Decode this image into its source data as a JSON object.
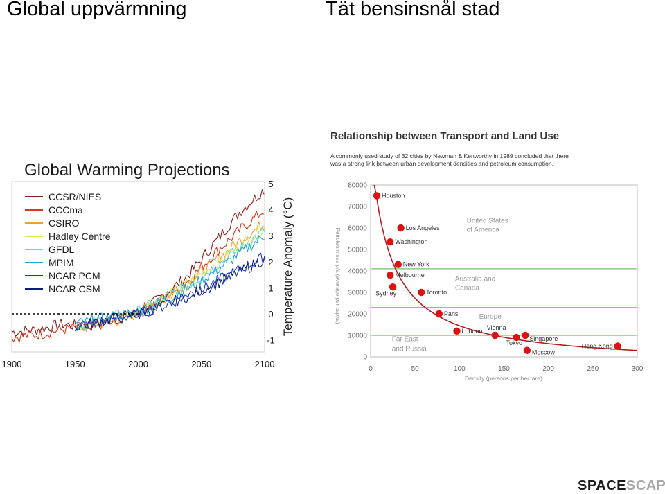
{
  "slide": {
    "title_left": "Global uppvärmning",
    "title_right": "Tät bensinsnål stad"
  },
  "brand": {
    "part1": "SPACE",
    "part2": "SCAPE"
  },
  "chart_data": [
    {
      "type": "line",
      "title": "Global Warming Projections",
      "ylabel": "Temperature Anomaly (°C)",
      "x_ticks": [
        1900,
        1950,
        2000,
        2050,
        2100
      ],
      "y_ticks": [
        5,
        4,
        3,
        2,
        1,
        0,
        -1
      ],
      "xlim": [
        1900,
        2100
      ],
      "ylim": [
        -1.5,
        5.3
      ],
      "baseline": 0,
      "series": [
        {
          "name": "CCSR/NIES",
          "color": "#8b1a1a",
          "x": [
            1900,
            1920,
            1940,
            1960,
            1980,
            2000,
            2020,
            2040,
            2060,
            2080,
            2100
          ],
          "y": [
            -0.7,
            -0.6,
            -0.4,
            -0.5,
            -0.2,
            0.0,
            0.7,
            1.5,
            2.7,
            3.9,
            4.8
          ]
        },
        {
          "name": "CCCma",
          "color": "#d33a1f",
          "x": [
            1900,
            1920,
            1940,
            1960,
            1980,
            2000,
            2020,
            2040,
            2060,
            2080,
            2100
          ],
          "y": [
            -0.9,
            -0.8,
            -0.6,
            -0.5,
            -0.3,
            0.1,
            0.6,
            1.3,
            2.3,
            3.2,
            4.0
          ]
        },
        {
          "name": "CSIRO",
          "color": "#f0a02a",
          "x": [
            1950,
            1960,
            1980,
            2000,
            2020,
            2040,
            2060,
            2080,
            2100
          ],
          "y": [
            -0.6,
            -0.5,
            -0.3,
            0.0,
            0.5,
            1.2,
            2.0,
            2.8,
            3.5
          ]
        },
        {
          "name": "Hadley Centre",
          "color": "#e4e04a",
          "x": [
            1950,
            1960,
            1980,
            2000,
            2020,
            2040,
            2060,
            2080,
            2100
          ],
          "y": [
            -0.5,
            -0.4,
            -0.2,
            0.1,
            0.6,
            1.2,
            1.9,
            2.6,
            3.3
          ]
        },
        {
          "name": "GFDL",
          "color": "#56e1c0",
          "x": [
            1950,
            1960,
            1980,
            2000,
            2020,
            2040,
            2060,
            2080,
            2100
          ],
          "y": [
            -0.5,
            -0.4,
            -0.1,
            0.1,
            0.6,
            1.1,
            1.8,
            2.5,
            3.2
          ]
        },
        {
          "name": "MPIM",
          "color": "#23a3d6",
          "x": [
            1950,
            1960,
            1980,
            2000,
            2020,
            2040,
            2060,
            2080,
            2100
          ],
          "y": [
            -0.4,
            -0.3,
            -0.1,
            0.1,
            0.5,
            1.0,
            1.6,
            2.3,
            3.0
          ]
        },
        {
          "name": "NCAR PCM",
          "color": "#1836c2",
          "x": [
            1950,
            1960,
            1980,
            2000,
            2020,
            2040,
            2060,
            2080,
            2100
          ],
          "y": [
            -0.5,
            -0.4,
            -0.2,
            0.0,
            0.3,
            0.7,
            1.2,
            1.7,
            2.2
          ]
        },
        {
          "name": "NCAR CSM",
          "color": "#0c1d80",
          "x": [
            1950,
            1960,
            1980,
            2000,
            2020,
            2040,
            2060,
            2080,
            2100
          ],
          "y": [
            -0.5,
            -0.4,
            -0.2,
            0.0,
            0.3,
            0.7,
            1.1,
            1.6,
            2.1
          ]
        }
      ]
    },
    {
      "type": "scatter",
      "title": "Relationship between Transport and Land Use",
      "subtitle_lines": [
        "A commonly used study of 32 cities by Newman & Kenworthy in 1989 concluded that there",
        "was a strong link between urban development densities and petroleum consumption."
      ],
      "xlabel": "Density (persons per hectare)",
      "ylabel": "Petroleum use p/a (average per capita)",
      "xlim": [
        0,
        300
      ],
      "ylim": [
        0,
        80000
      ],
      "x_ticks": [
        0,
        50,
        100,
        150,
        200,
        250,
        300
      ],
      "y_ticks": [
        0,
        10000,
        20000,
        30000,
        40000,
        50000,
        60000,
        70000,
        80000
      ],
      "band_lines": [
        41000,
        23000,
        10000
      ],
      "color": "#e01010",
      "curve_color": "#b51c1c",
      "region_labels": [
        {
          "text": "United States",
          "x": 108,
          "y": 62500
        },
        {
          "text": "of America",
          "x": 108,
          "y": 58300
        },
        {
          "text": "Australia and",
          "x": 95,
          "y": 35300
        },
        {
          "text": "Canada",
          "x": 95,
          "y": 31200
        },
        {
          "text": "Europe",
          "x": 122,
          "y": 17700
        },
        {
          "text": "Far East",
          "x": 24,
          "y": 7200
        },
        {
          "text": "and Russia",
          "x": 24,
          "y": 2800
        }
      ],
      "points": [
        {
          "city": "Houston",
          "x": 7,
          "y": 75000
        },
        {
          "city": "Los Angeles",
          "x": 34,
          "y": 60000
        },
        {
          "city": "Washington",
          "x": 22,
          "y": 53500
        },
        {
          "city": "New York",
          "x": 31,
          "y": 43000
        },
        {
          "city": "Melbourne",
          "x": 22,
          "y": 38000
        },
        {
          "city": "Sydney",
          "x": 25,
          "y": 32500
        },
        {
          "city": "Toronto",
          "x": 57,
          "y": 30000
        },
        {
          "city": "Paris",
          "x": 77,
          "y": 20000
        },
        {
          "city": "London",
          "x": 97,
          "y": 12000
        },
        {
          "city": "Vienna",
          "x": 140,
          "y": 10000
        },
        {
          "city": "Tokyo",
          "x": 164,
          "y": 9000
        },
        {
          "city": "Singapore",
          "x": 174,
          "y": 10000
        },
        {
          "city": "Moscow",
          "x": 176,
          "y": 3000
        },
        {
          "city": "Hong Kong",
          "x": 278,
          "y": 5000
        }
      ]
    }
  ]
}
